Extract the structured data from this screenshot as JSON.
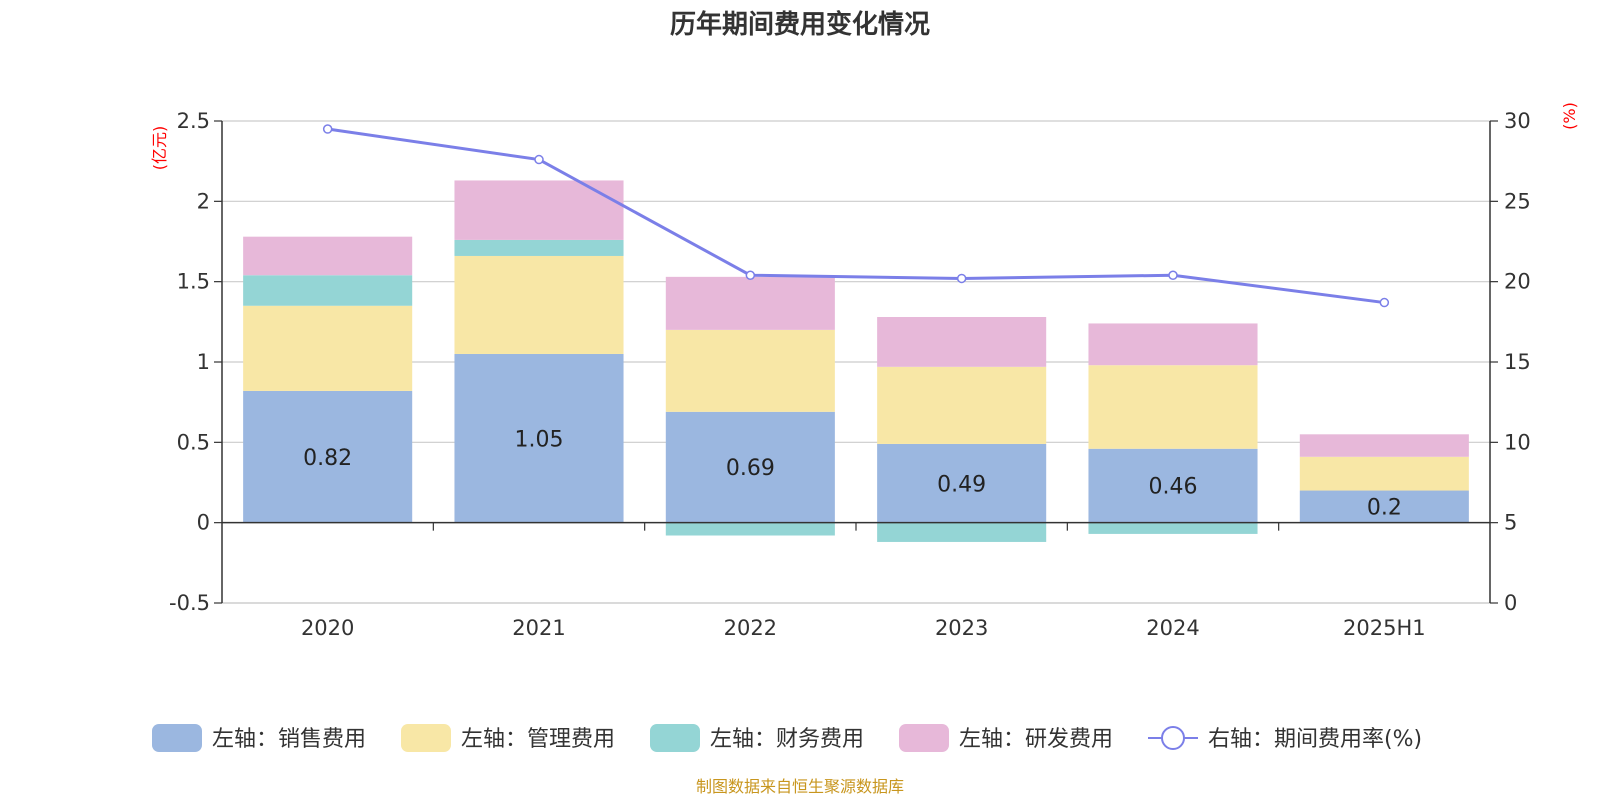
{
  "chart_data": {
    "type": "bar",
    "title": "历年期间费用变化情况",
    "categories": [
      "2020",
      "2021",
      "2022",
      "2023",
      "2024",
      "2025H1"
    ],
    "left_axis": {
      "unit": "(亿元)",
      "ylim": [
        -0.5,
        2.5
      ],
      "ticks": [
        "-0.5",
        "0",
        "0.5",
        "1",
        "1.5",
        "2",
        "2.5"
      ]
    },
    "right_axis": {
      "unit": "(%)",
      "ylim": [
        0,
        30
      ],
      "ticks": [
        "0",
        "5",
        "10",
        "15",
        "20",
        "25",
        "30"
      ]
    },
    "series": [
      {
        "name": "左轴：销售费用",
        "type": "bar",
        "color": "#9bb7e0",
        "values": [
          0.82,
          1.05,
          0.69,
          0.49,
          0.46,
          0.2
        ],
        "labels": [
          "0.82",
          "1.05",
          "0.69",
          "0.49",
          "0.46",
          "0.2"
        ]
      },
      {
        "name": "左轴：管理费用",
        "type": "bar",
        "color": "#f8e7a6",
        "values": [
          0.53,
          0.61,
          0.51,
          0.48,
          0.52,
          0.21
        ]
      },
      {
        "name": "左轴：财务费用",
        "type": "bar",
        "color": "#94d5d5",
        "values": [
          0.19,
          0.1,
          -0.08,
          -0.12,
          -0.07,
          0.0
        ]
      },
      {
        "name": "左轴：研发费用",
        "type": "bar",
        "color": "#e7b8d9",
        "values": [
          0.24,
          0.37,
          0.33,
          0.31,
          0.26,
          0.14
        ]
      },
      {
        "name": "右轴：期间费用率(%)",
        "type": "line",
        "color": "#7b7fe8",
        "values": [
          29.5,
          27.6,
          20.4,
          20.2,
          20.4,
          18.7
        ]
      }
    ],
    "grid": true,
    "legend_position": "bottom"
  },
  "source_text": "制图数据来自恒生聚源数据库"
}
